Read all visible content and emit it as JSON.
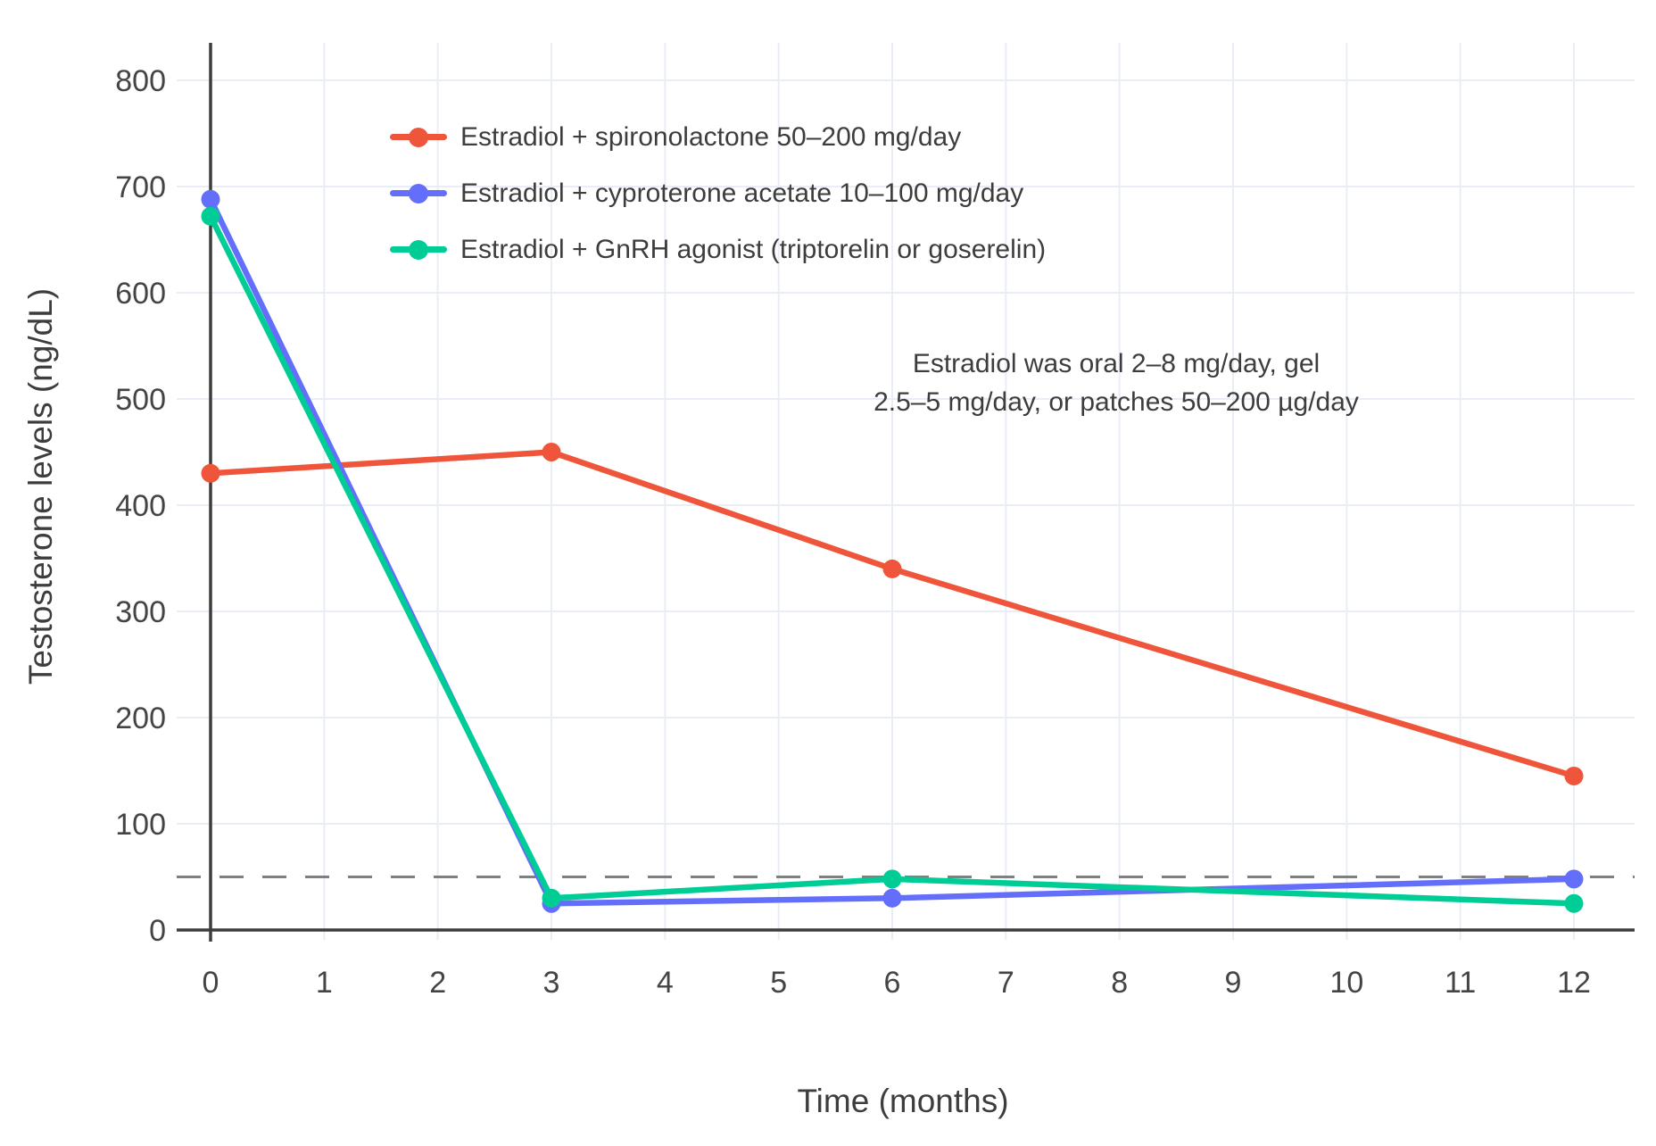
{
  "chart_data": {
    "type": "line",
    "title": "",
    "xlabel": "Time (months)",
    "ylabel": "Testosterone levels (ng/dL)",
    "x": [
      0,
      3,
      6,
      12
    ],
    "x_ticks": [
      0,
      1,
      2,
      3,
      4,
      5,
      6,
      7,
      8,
      9,
      10,
      11,
      12
    ],
    "y_ticks": [
      0,
      100,
      200,
      300,
      400,
      500,
      600,
      700,
      800
    ],
    "xlim": [
      -0.3,
      12.55
    ],
    "ylim": [
      0,
      835
    ],
    "grid": true,
    "legend_position": "upper-left-inside",
    "series": [
      {
        "name": "Estradiol + spironolactone 50–200 mg/day",
        "color": "#EF553B",
        "values": [
          430,
          450,
          340,
          145
        ]
      },
      {
        "name": "Estradiol + cyproterone acetate 10–100 mg/day",
        "color": "#636EFA",
        "values": [
          688,
          25,
          30,
          48
        ]
      },
      {
        "name": "Estradiol + GnRH agonist (triptorelin or goserelin)",
        "color": "#00CC96",
        "values": [
          672,
          30,
          48,
          25
        ]
      }
    ],
    "reference_line": {
      "y": 50,
      "style": "dashed",
      "color": "#7f7f7f"
    },
    "annotation": {
      "line1": "Estradiol was oral 2–8 mg/day, gel",
      "line2": "2.5–5 mg/day, or patches 50–200 µg/day"
    },
    "colors": {
      "background": "#ffffff",
      "grid": "#e8edf6",
      "axis": "#3d3d3d",
      "tick_text": "#444444"
    }
  }
}
